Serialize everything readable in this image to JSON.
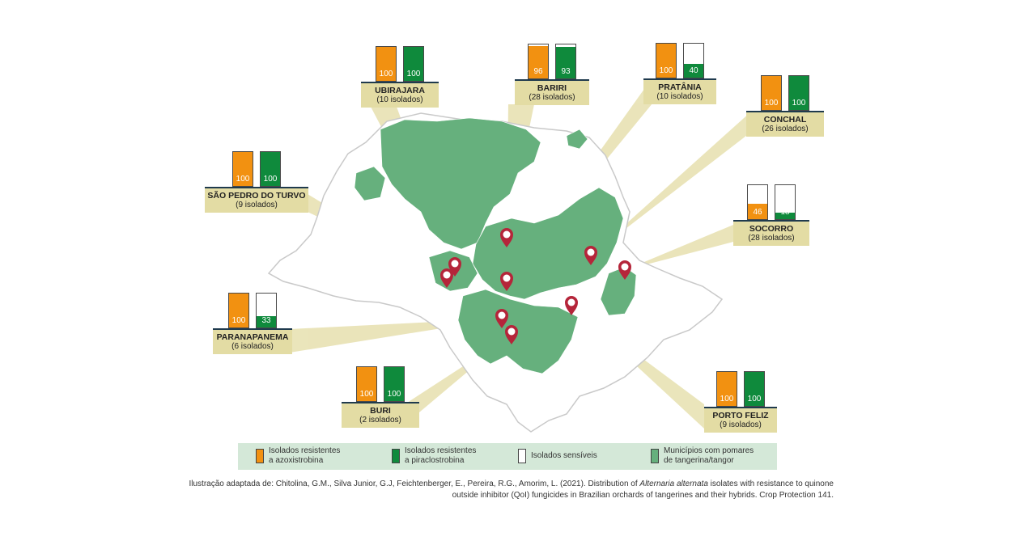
{
  "colors": {
    "azoxistrobina": "#f29111",
    "piraclostrobina": "#0f8a3c",
    "sensivel": "#ffffff",
    "municipios": "#66b07d",
    "callout_box": "#e3dca4",
    "marker": "#b5253a"
  },
  "sites": [
    {
      "name": "UBIRAJARA",
      "count": "(10 isolados)",
      "azoxistrobina": 100,
      "piraclostrobina": 100
    },
    {
      "name": "BARIRI",
      "count": "(28 isolados)",
      "azoxistrobina": 96,
      "piraclostrobina": 93
    },
    {
      "name": "PRATÂNIA",
      "count": "(10 isolados)",
      "azoxistrobina": 100,
      "piraclostrobina": 40
    },
    {
      "name": "CONCHAL",
      "count": "(26 isolados)",
      "azoxistrobina": 100,
      "piraclostrobina": 100
    },
    {
      "name": "SÃO PEDRO DO TURVO",
      "count": "(9 isolados)",
      "azoxistrobina": 100,
      "piraclostrobina": 100
    },
    {
      "name": "SOCORRO",
      "count": "(28 isolados)",
      "azoxistrobina": 46,
      "piraclostrobina": 18
    },
    {
      "name": "PARANAPANEMA",
      "count": "(6 isolados)",
      "azoxistrobina": 100,
      "piraclostrobina": 33
    },
    {
      "name": "BURI",
      "count": "(2 isolados)",
      "azoxistrobina": 100,
      "piraclostrobina": 100
    },
    {
      "name": "PORTO FELIZ",
      "count": "(9 isolados)",
      "azoxistrobina": 100,
      "piraclostrobina": 100
    }
  ],
  "legend": [
    {
      "key": "azoxistrobina",
      "line1": "Isolados resistentes",
      "line2": "a azoxistrobina"
    },
    {
      "key": "piraclostrobina",
      "line1": "Isolados resistentes",
      "line2": "a piraclostrobina"
    },
    {
      "key": "sensivel",
      "line1": "Isolados sensíveis",
      "line2": ""
    },
    {
      "key": "municipios",
      "line1": "Municípios com pomares",
      "line2": "de tangerina/tangor"
    }
  ],
  "credit": {
    "line1_pre": "Ilustração adaptada de: Chitolina, G.M., Silva Junior, G.J, Feichtenberger, E., Pereira, R.G., Amorim, L. (2021). Distribution of ",
    "line1_italic": "Alternaria alternata",
    "line1_post": " isolates with resistance to quinone",
    "line2": "outside inhibitor (QoI) fungicides in Brazilian orchards of tangerines and their hybrids. Crop Protection 141."
  }
}
